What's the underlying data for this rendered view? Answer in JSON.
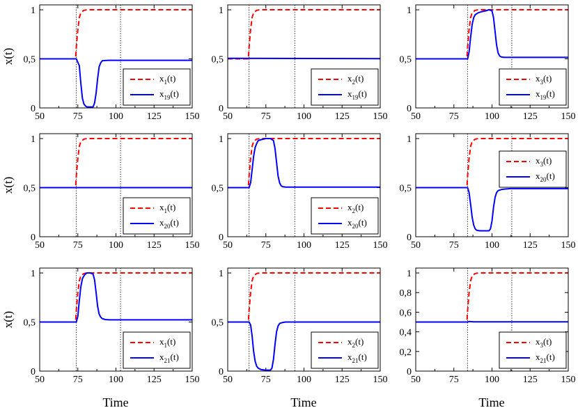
{
  "figure": {
    "xlabel": "Time",
    "ylabel": "x(t)"
  },
  "colors": {
    "red": "#ff0000",
    "blue": "#0000ff",
    "axis": "#000000"
  },
  "chart_data": [
    {
      "type": "line",
      "row": 0,
      "col": 0,
      "xlim": [
        50,
        150
      ],
      "ylim": [
        0,
        1.05
      ],
      "xticks": [
        "50",
        "75",
        "100",
        "125",
        "150"
      ],
      "yticks": [
        "0",
        "0,5",
        "1"
      ],
      "ytick_values": [
        0,
        0.5,
        1
      ],
      "vlines": [
        74,
        103
      ],
      "ylabel": "x(t)",
      "xlabel": "",
      "legend": {
        "position": "lower-right",
        "red": {
          "base": "x",
          "sub": "1",
          "suffix": "(t)"
        },
        "blue": {
          "base": "x",
          "sub": "19",
          "suffix": "(t)"
        }
      },
      "series": [
        {
          "name": "red",
          "style": "dashed",
          "x": [
            50,
            73.5,
            74,
            75,
            76,
            77,
            79,
            81,
            150
          ],
          "values": [
            0.5,
            0.5,
            0.62,
            0.8,
            0.92,
            0.97,
            0.995,
            1,
            1
          ]
        },
        {
          "name": "blue",
          "style": "solid",
          "x": [
            50,
            74,
            76,
            77,
            78,
            79,
            80,
            81,
            82,
            85,
            86,
            87,
            88,
            89,
            90,
            91,
            92,
            93,
            94,
            95,
            150
          ],
          "values": [
            0.5,
            0.5,
            0.43,
            0.25,
            0.1,
            0.04,
            0.02,
            0.01,
            0.01,
            0.01,
            0.05,
            0.15,
            0.3,
            0.42,
            0.46,
            0.48,
            0.482,
            0.483,
            0.484,
            0.485,
            0.485
          ]
        }
      ]
    },
    {
      "type": "line",
      "row": 0,
      "col": 1,
      "xlim": [
        50,
        150
      ],
      "ylim": [
        0,
        1.05
      ],
      "xticks": [
        "50",
        "75",
        "100",
        "125",
        "150"
      ],
      "yticks": [
        "0",
        "0,5",
        "1"
      ],
      "ytick_values": [
        0,
        0.5,
        1
      ],
      "vlines": [
        64,
        94
      ],
      "ylabel": "",
      "xlabel": "",
      "legend": {
        "position": "lower-right",
        "red": {
          "base": "x",
          "sub": "2",
          "suffix": "(t)"
        },
        "blue": {
          "base": "x",
          "sub": "19",
          "suffix": "(t)"
        }
      },
      "series": [
        {
          "name": "red",
          "style": "dashed",
          "x": [
            50,
            63.5,
            64,
            65,
            66,
            67,
            69,
            71,
            150
          ],
          "values": [
            0.5,
            0.5,
            0.62,
            0.8,
            0.92,
            0.97,
            0.995,
            1,
            1
          ]
        },
        {
          "name": "blue",
          "style": "solid",
          "x": [
            50,
            150
          ],
          "values": [
            0.505,
            0.502
          ]
        }
      ]
    },
    {
      "type": "line",
      "row": 0,
      "col": 2,
      "xlim": [
        50,
        150
      ],
      "ylim": [
        0,
        1.05
      ],
      "xticks": [
        "50",
        "75",
        "100",
        "125",
        "150"
      ],
      "yticks": [
        "0",
        "0,5",
        "1"
      ],
      "ytick_values": [
        0,
        0.5,
        1
      ],
      "vlines": [
        84,
        113
      ],
      "ylabel": "",
      "xlabel": "",
      "legend": {
        "position": "lower-right",
        "red": {
          "base": "x",
          "sub": "3",
          "suffix": "(t)"
        },
        "blue": {
          "base": "x",
          "sub": "19",
          "suffix": "(t)"
        }
      },
      "series": [
        {
          "name": "red",
          "style": "dashed",
          "x": [
            50,
            83.5,
            84,
            85,
            86,
            87,
            89,
            91,
            150
          ],
          "values": [
            0.5,
            0.5,
            0.62,
            0.8,
            0.92,
            0.97,
            0.995,
            1,
            1
          ]
        },
        {
          "name": "blue",
          "style": "solid",
          "x": [
            50,
            84,
            85,
            86,
            87,
            88,
            89,
            91,
            93,
            96,
            98,
            100,
            101,
            102,
            103,
            104,
            105,
            106,
            108,
            112,
            150
          ],
          "values": [
            0.5,
            0.5,
            0.57,
            0.72,
            0.85,
            0.92,
            0.95,
            0.97,
            0.98,
            0.99,
            1.0,
            0.99,
            0.92,
            0.78,
            0.64,
            0.56,
            0.53,
            0.52,
            0.515,
            0.515,
            0.515
          ]
        }
      ]
    },
    {
      "type": "line",
      "row": 1,
      "col": 0,
      "xlim": [
        50,
        150
      ],
      "ylim": [
        0,
        1.05
      ],
      "xticks": [
        "50",
        "75",
        "100",
        "125",
        "150"
      ],
      "yticks": [
        "0",
        "0,5",
        "1"
      ],
      "ytick_values": [
        0,
        0.5,
        1
      ],
      "vlines": [
        74,
        103
      ],
      "ylabel": "x(t)",
      "xlabel": "",
      "legend": {
        "position": "lower-right",
        "red": {
          "base": "x",
          "sub": "1",
          "suffix": "(t)"
        },
        "blue": {
          "base": "x",
          "sub": "20",
          "suffix": "(t)"
        }
      },
      "series": [
        {
          "name": "red",
          "style": "dashed",
          "x": [
            50,
            73.5,
            74,
            75,
            76,
            77,
            79,
            81,
            150
          ],
          "values": [
            0.5,
            0.5,
            0.62,
            0.8,
            0.92,
            0.97,
            0.995,
            1,
            1
          ]
        },
        {
          "name": "blue",
          "style": "solid",
          "x": [
            50,
            150
          ],
          "values": [
            0.5,
            0.5
          ]
        }
      ]
    },
    {
      "type": "line",
      "row": 1,
      "col": 1,
      "xlim": [
        50,
        150
      ],
      "ylim": [
        0,
        1.05
      ],
      "xticks": [
        "50",
        "75",
        "100",
        "125",
        "150"
      ],
      "yticks": [
        "0",
        "0,5",
        "1"
      ],
      "ytick_values": [
        0,
        0.5,
        1
      ],
      "vlines": [
        64,
        94
      ],
      "ylabel": "",
      "xlabel": "",
      "legend": {
        "position": "lower-right",
        "red": {
          "base": "x",
          "sub": "2",
          "suffix": "(t)"
        },
        "blue": {
          "base": "x",
          "sub": "20",
          "suffix": "(t)"
        }
      },
      "series": [
        {
          "name": "red",
          "style": "dashed",
          "x": [
            50,
            63.5,
            64,
            65,
            66,
            67,
            69,
            71,
            150
          ],
          "values": [
            0.5,
            0.5,
            0.62,
            0.8,
            0.92,
            0.97,
            0.995,
            1,
            1
          ]
        },
        {
          "name": "blue",
          "style": "solid",
          "x": [
            50,
            64,
            65,
            66,
            67,
            68,
            69,
            70,
            72,
            75,
            78,
            80,
            81,
            82,
            83,
            84,
            85,
            86,
            88,
            92,
            150
          ],
          "values": [
            0.5,
            0.5,
            0.55,
            0.68,
            0.82,
            0.91,
            0.95,
            0.98,
            0.99,
            1.0,
            1.0,
            0.98,
            0.9,
            0.76,
            0.62,
            0.55,
            0.52,
            0.51,
            0.505,
            0.505,
            0.505
          ]
        }
      ]
    },
    {
      "type": "line",
      "row": 1,
      "col": 2,
      "xlim": [
        50,
        150
      ],
      "ylim": [
        0,
        1.05
      ],
      "xticks": [
        "50",
        "75",
        "100",
        "125",
        "150"
      ],
      "yticks": [
        "0",
        "0,5",
        "1"
      ],
      "ytick_values": [
        0,
        0.5,
        1
      ],
      "vlines": [
        84,
        113
      ],
      "ylabel": "",
      "xlabel": "",
      "legend": {
        "position": "upper-right",
        "red": {
          "base": "x",
          "sub": "3",
          "suffix": "(t)"
        },
        "blue": {
          "base": "x",
          "sub": "20",
          "suffix": "(t)"
        }
      },
      "series": [
        {
          "name": "red",
          "style": "dashed",
          "x": [
            50,
            83.5,
            84,
            85,
            86,
            87,
            89,
            91,
            150
          ],
          "values": [
            0.5,
            0.5,
            0.62,
            0.8,
            0.92,
            0.97,
            0.995,
            1,
            1
          ]
        },
        {
          "name": "blue",
          "style": "solid",
          "x": [
            50,
            84,
            85,
            86,
            87,
            88,
            89,
            90,
            92,
            95,
            98,
            99,
            100,
            101,
            102,
            103,
            104,
            106,
            108,
            112,
            150
          ],
          "values": [
            0.5,
            0.5,
            0.45,
            0.33,
            0.2,
            0.12,
            0.08,
            0.065,
            0.06,
            0.06,
            0.06,
            0.08,
            0.16,
            0.3,
            0.4,
            0.45,
            0.47,
            0.48,
            0.485,
            0.49,
            0.49
          ]
        }
      ]
    },
    {
      "type": "line",
      "row": 2,
      "col": 0,
      "xlim": [
        50,
        150
      ],
      "ylim": [
        0,
        1.05
      ],
      "xticks": [
        "50",
        "75",
        "100",
        "125",
        "150"
      ],
      "yticks": [
        "0",
        "0,5",
        "1"
      ],
      "ytick_values": [
        0,
        0.5,
        1
      ],
      "vlines": [
        74,
        103
      ],
      "ylabel": "x(t)",
      "xlabel": "Time",
      "legend": {
        "position": "lower-right",
        "red": {
          "base": "x",
          "sub": "1",
          "suffix": "(t)"
        },
        "blue": {
          "base": "x",
          "sub": "21",
          "suffix": "(t)"
        }
      },
      "series": [
        {
          "name": "red",
          "style": "dashed",
          "x": [
            50,
            73.5,
            74,
            75,
            76,
            77,
            79,
            81,
            150
          ],
          "values": [
            0.5,
            0.5,
            0.62,
            0.8,
            0.92,
            0.97,
            0.995,
            1,
            1
          ]
        },
        {
          "name": "blue",
          "style": "solid",
          "x": [
            50,
            74,
            75,
            76,
            77,
            78,
            79,
            80,
            81,
            83,
            85,
            86,
            87,
            88,
            89,
            90,
            91,
            93,
            96,
            100,
            150
          ],
          "values": [
            0.5,
            0.5,
            0.56,
            0.72,
            0.86,
            0.94,
            0.97,
            0.99,
            1.0,
            1.0,
            0.99,
            0.93,
            0.8,
            0.66,
            0.58,
            0.55,
            0.535,
            0.525,
            0.522,
            0.522,
            0.522
          ]
        }
      ]
    },
    {
      "type": "line",
      "row": 2,
      "col": 1,
      "xlim": [
        50,
        150
      ],
      "ylim": [
        0,
        1.05
      ],
      "xticks": [
        "50",
        "75",
        "100",
        "125",
        "150"
      ],
      "yticks": [
        "0",
        "0,5",
        "1"
      ],
      "ytick_values": [
        0,
        0.5,
        1
      ],
      "vlines": [
        64,
        94
      ],
      "ylabel": "",
      "xlabel": "Time",
      "legend": {
        "position": "lower-right",
        "red": {
          "base": "x",
          "sub": "2",
          "suffix": "(t)"
        },
        "blue": {
          "base": "x",
          "sub": "21",
          "suffix": "(t)"
        }
      },
      "series": [
        {
          "name": "red",
          "style": "dashed",
          "x": [
            50,
            63.5,
            64,
            65,
            66,
            67,
            69,
            71,
            150
          ],
          "values": [
            0.5,
            0.5,
            0.62,
            0.8,
            0.92,
            0.97,
            0.995,
            1,
            1
          ]
        },
        {
          "name": "blue",
          "style": "solid",
          "x": [
            50,
            64,
            65,
            66,
            67,
            68,
            69,
            70,
            72,
            75,
            78,
            79,
            80,
            81,
            82,
            83,
            84,
            86,
            88,
            92,
            150
          ],
          "values": [
            0.5,
            0.5,
            0.47,
            0.36,
            0.2,
            0.1,
            0.05,
            0.03,
            0.015,
            0.01,
            0.01,
            0.03,
            0.12,
            0.27,
            0.4,
            0.46,
            0.485,
            0.495,
            0.5,
            0.5,
            0.5
          ]
        }
      ]
    },
    {
      "type": "line",
      "row": 2,
      "col": 2,
      "xlim": [
        50,
        150
      ],
      "ylim": [
        0,
        1.05
      ],
      "xticks": [
        "50",
        "75",
        "100",
        "125",
        "150"
      ],
      "yticks": [
        "0",
        "0,2",
        "0,4",
        "0,6",
        "0,8",
        "1"
      ],
      "ytick_values": [
        0,
        0.2,
        0.4,
        0.6,
        0.8,
        1
      ],
      "vlines": [
        84,
        113
      ],
      "ylabel": "",
      "xlabel": "Time",
      "legend": {
        "position": "lower-right",
        "red": {
          "base": "x",
          "sub": "3",
          "suffix": "(t)"
        },
        "blue": {
          "base": "x",
          "sub": "21",
          "suffix": "(t)"
        }
      },
      "series": [
        {
          "name": "red",
          "style": "dashed",
          "x": [
            50,
            83.5,
            84,
            85,
            86,
            87,
            89,
            91,
            150
          ],
          "values": [
            0.5,
            0.5,
            0.62,
            0.8,
            0.92,
            0.97,
            0.995,
            1,
            1
          ]
        },
        {
          "name": "blue",
          "style": "solid",
          "x": [
            50,
            84,
            85,
            88,
            150
          ],
          "values": [
            0.5,
            0.5,
            0.505,
            0.502,
            0.502
          ]
        }
      ]
    }
  ]
}
